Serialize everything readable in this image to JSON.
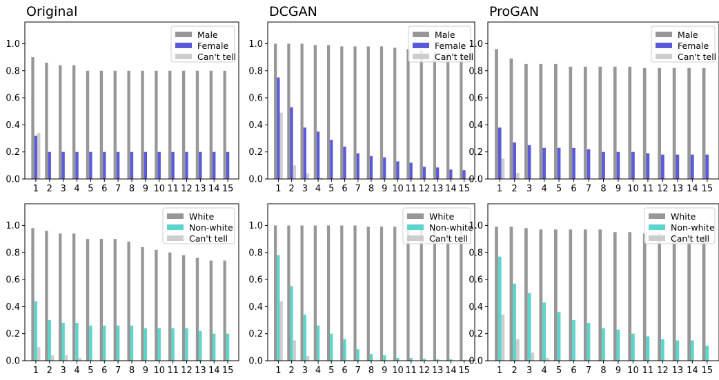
{
  "colors": {
    "male": "#979797",
    "female": "#5b5bd9",
    "white": "#979797",
    "nonwhite": "#5cd6cc",
    "cant_tell": "#cdcdcd"
  },
  "chart_data": [
    {
      "type": "bar",
      "title": "Original",
      "categories": [
        "1",
        "2",
        "3",
        "4",
        "5",
        "6",
        "7",
        "8",
        "9",
        "10",
        "11",
        "12",
        "13",
        "14",
        "15"
      ],
      "ylim": [
        0,
        1.16
      ],
      "yticks": [
        "0.0",
        "0.2",
        "0.4",
        "0.6",
        "0.8",
        "1.0"
      ],
      "legend_position": "top-right",
      "series": [
        {
          "name": "Male",
          "color": "#979797",
          "values": [
            0.9,
            0.86,
            0.84,
            0.84,
            0.8,
            0.8,
            0.8,
            0.8,
            0.8,
            0.8,
            0.8,
            0.8,
            0.8,
            0.8,
            0.8
          ]
        },
        {
          "name": "Female",
          "color": "#5b5bd9",
          "values": [
            0.32,
            0.2,
            0.2,
            0.2,
            0.2,
            0.2,
            0.2,
            0.2,
            0.2,
            0.2,
            0.2,
            0.2,
            0.2,
            0.2,
            0.2
          ]
        },
        {
          "name": "Can't tell",
          "color": "#cdcdcd",
          "values": [
            0.34,
            0,
            0,
            0,
            0,
            0,
            0,
            0,
            0,
            0,
            0,
            0,
            0,
            0,
            0
          ]
        }
      ]
    },
    {
      "type": "bar",
      "title": "DCGAN",
      "categories": [
        "1",
        "2",
        "3",
        "4",
        "5",
        "6",
        "7",
        "8",
        "9",
        "10",
        "11",
        "12",
        "13",
        "14",
        "15"
      ],
      "ylim": [
        0,
        1.16
      ],
      "yticks": [
        "0.0",
        "0.2",
        "0.4",
        "0.6",
        "0.8",
        "1.0"
      ],
      "legend_position": "top-right",
      "series": [
        {
          "name": "Male",
          "color": "#979797",
          "values": [
            1.0,
            1.0,
            1.0,
            0.99,
            0.99,
            0.98,
            0.98,
            0.98,
            0.98,
            0.97,
            0.96,
            0.95,
            0.94,
            0.93,
            0.93
          ]
        },
        {
          "name": "Female",
          "color": "#5b5bd9",
          "values": [
            0.75,
            0.53,
            0.38,
            0.35,
            0.29,
            0.24,
            0.19,
            0.17,
            0.16,
            0.13,
            0.12,
            0.09,
            0.085,
            0.07,
            0.065
          ]
        },
        {
          "name": "Can't tell",
          "color": "#cdcdcd",
          "values": [
            0.49,
            0.1,
            0.04,
            0.01,
            0,
            0,
            0,
            0,
            0,
            0,
            0,
            0,
            0,
            0,
            0
          ]
        }
      ]
    },
    {
      "type": "bar",
      "title": "ProGAN",
      "categories": [
        "1",
        "2",
        "3",
        "4",
        "5",
        "6",
        "7",
        "8",
        "9",
        "10",
        "11",
        "12",
        "13",
        "14",
        "15"
      ],
      "ylim": [
        0,
        1.16
      ],
      "yticks": [
        "0.0",
        "0.2",
        "0.4",
        "0.6",
        "0.8",
        "1.0"
      ],
      "legend_position": "top-right",
      "series": [
        {
          "name": "Male",
          "color": "#979797",
          "values": [
            0.96,
            0.89,
            0.85,
            0.85,
            0.85,
            0.83,
            0.83,
            0.83,
            0.83,
            0.83,
            0.82,
            0.82,
            0.82,
            0.82,
            0.82
          ]
        },
        {
          "name": "Female",
          "color": "#5b5bd9",
          "values": [
            0.38,
            0.27,
            0.25,
            0.23,
            0.23,
            0.23,
            0.22,
            0.2,
            0.2,
            0.2,
            0.19,
            0.18,
            0.18,
            0.18,
            0.18
          ]
        },
        {
          "name": "Can't tell",
          "color": "#cdcdcd",
          "values": [
            0.15,
            0.045,
            0,
            0,
            0,
            0,
            0,
            0,
            0,
            0,
            0,
            0,
            0,
            0,
            0
          ]
        }
      ]
    },
    {
      "type": "bar",
      "title": "",
      "categories": [
        "1",
        "2",
        "3",
        "4",
        "5",
        "6",
        "7",
        "8",
        "9",
        "10",
        "11",
        "12",
        "13",
        "14",
        "15"
      ],
      "ylim": [
        0,
        1.16
      ],
      "yticks": [
        "0.0",
        "0.2",
        "0.4",
        "0.6",
        "0.8",
        "1.0"
      ],
      "legend_position": "top-right",
      "series": [
        {
          "name": "White",
          "color": "#979797",
          "values": [
            0.98,
            0.96,
            0.94,
            0.94,
            0.9,
            0.9,
            0.9,
            0.88,
            0.84,
            0.82,
            0.8,
            0.78,
            0.76,
            0.74,
            0.74
          ]
        },
        {
          "name": "Non-white",
          "color": "#5cd6cc",
          "values": [
            0.44,
            0.3,
            0.28,
            0.28,
            0.26,
            0.26,
            0.26,
            0.26,
            0.24,
            0.24,
            0.24,
            0.24,
            0.22,
            0.2,
            0.2
          ]
        },
        {
          "name": "Can't tell",
          "color": "#cdcdcd",
          "values": [
            0.1,
            0.04,
            0.04,
            0.02,
            0,
            0,
            0,
            0,
            0,
            0,
            0,
            0,
            0,
            0,
            0
          ]
        }
      ]
    },
    {
      "type": "bar",
      "title": "",
      "categories": [
        "1",
        "2",
        "3",
        "4",
        "5",
        "6",
        "7",
        "8",
        "9",
        "10",
        "11",
        "12",
        "13",
        "14",
        "15"
      ],
      "ylim": [
        0,
        1.16
      ],
      "yticks": [
        "0.0",
        "0.2",
        "0.4",
        "0.6",
        "0.8",
        "1.0"
      ],
      "legend_position": "top-right",
      "series": [
        {
          "name": "White",
          "color": "#979797",
          "values": [
            1.0,
            1.0,
            1.0,
            1.0,
            1.0,
            1.0,
            1.0,
            0.99,
            0.99,
            0.99,
            0.98,
            0.98,
            0.97,
            0.97,
            0.97
          ]
        },
        {
          "name": "Non-white",
          "color": "#5cd6cc",
          "values": [
            0.78,
            0.55,
            0.34,
            0.26,
            0.2,
            0.16,
            0.085,
            0.05,
            0.04,
            0.02,
            0.02,
            0.015,
            0.01,
            0.01,
            0.005
          ]
        },
        {
          "name": "Can't tell",
          "color": "#cdcdcd",
          "values": [
            0.44,
            0.15,
            0.035,
            0,
            0,
            0,
            0,
            0,
            0,
            0,
            0,
            0,
            0,
            0,
            0
          ]
        }
      ]
    },
    {
      "type": "bar",
      "title": "",
      "categories": [
        "1",
        "2",
        "3",
        "4",
        "5",
        "6",
        "7",
        "8",
        "9",
        "10",
        "11",
        "12",
        "13",
        "14",
        "15"
      ],
      "ylim": [
        0,
        1.16
      ],
      "yticks": [
        "0.0",
        "0.2",
        "0.4",
        "0.6",
        "0.8",
        "1.0"
      ],
      "legend_position": "top-right",
      "series": [
        {
          "name": "White",
          "color": "#979797",
          "values": [
            0.99,
            0.99,
            0.98,
            0.97,
            0.97,
            0.97,
            0.97,
            0.97,
            0.95,
            0.95,
            0.94,
            0.94,
            0.93,
            0.93,
            0.93
          ]
        },
        {
          "name": "Non-white",
          "color": "#5cd6cc",
          "values": [
            0.77,
            0.57,
            0.5,
            0.43,
            0.36,
            0.3,
            0.28,
            0.24,
            0.23,
            0.2,
            0.18,
            0.16,
            0.15,
            0.15,
            0.11
          ]
        },
        {
          "name": "Can't tell",
          "color": "#cdcdcd",
          "values": [
            0.34,
            0.16,
            0.06,
            0.02,
            0,
            0,
            0,
            0,
            0,
            0,
            0,
            0,
            0,
            0,
            0
          ]
        }
      ]
    }
  ]
}
